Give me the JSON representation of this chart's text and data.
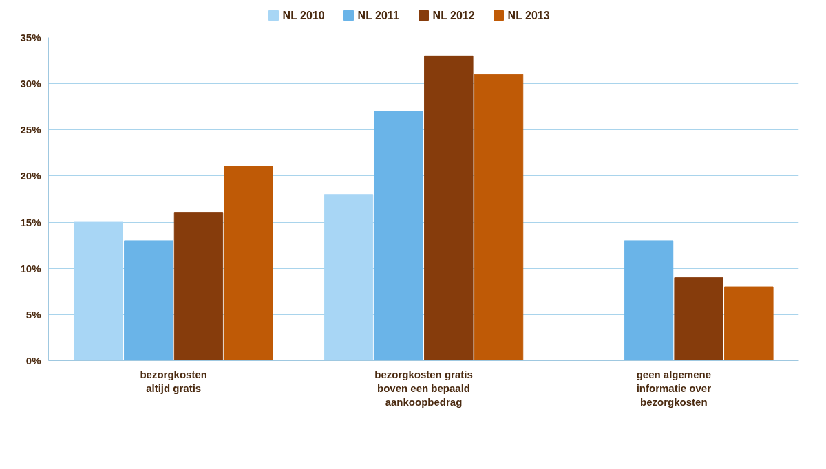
{
  "chart_data": {
    "type": "bar",
    "categories": [
      "bezorgkosten\naltijd gratis",
      "bezorgkosten gratis\nboven een bepaald\naankoopbedrag",
      "geen algemene\ninformatie over\nbezorgkosten"
    ],
    "series": [
      {
        "name": "NL 2010",
        "color": "#a8d6f5",
        "values": [
          0.15,
          0.18,
          null
        ]
      },
      {
        "name": "NL 2011",
        "color": "#6ab4e8",
        "values": [
          0.13,
          0.27,
          0.13
        ]
      },
      {
        "name": "NL 2012",
        "color": "#863c0c",
        "values": [
          0.16,
          0.33,
          0.09
        ]
      },
      {
        "name": "NL 2013",
        "color": "#bf5a06",
        "values": [
          0.21,
          0.31,
          0.08
        ]
      }
    ],
    "ylim": [
      0,
      0.35
    ],
    "yticks": [
      {
        "value": 0,
        "label": "0%"
      },
      {
        "value": 0.05,
        "label": "5%"
      },
      {
        "value": 0.1,
        "label": "10%"
      },
      {
        "value": 0.15,
        "label": "15%"
      },
      {
        "value": 0.2,
        "label": "20%"
      },
      {
        "value": 0.25,
        "label": "25%"
      },
      {
        "value": 0.3,
        "label": "30%"
      },
      {
        "value": 0.35,
        "label": "35%"
      }
    ],
    "grid": "y",
    "legend": "top"
  }
}
